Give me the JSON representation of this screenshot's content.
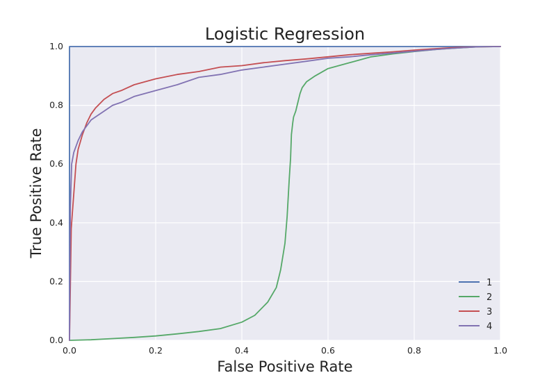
{
  "chart_data": {
    "type": "line",
    "title": "Logistic Regression",
    "xlabel": "False Positive Rate",
    "ylabel": "True Positive Rate",
    "xlim": [
      0.0,
      1.0
    ],
    "ylim": [
      0.0,
      1.0
    ],
    "xticks": [
      "0.0",
      "0.2",
      "0.4",
      "0.6",
      "0.8",
      "1.0"
    ],
    "yticks": [
      "0.0",
      "0.2",
      "0.4",
      "0.6",
      "0.8",
      "1.0"
    ],
    "grid": true,
    "legend_position": "lower-right",
    "background": "#EAEAF2",
    "series": [
      {
        "name": "1",
        "color": "#4C72B0",
        "x": [
          0.0,
          0.0,
          1.0
        ],
        "y": [
          0.0,
          1.0,
          1.0
        ]
      },
      {
        "name": "2",
        "color": "#55A868",
        "x": [
          0.0,
          0.05,
          0.1,
          0.15,
          0.2,
          0.25,
          0.3,
          0.35,
          0.4,
          0.43,
          0.46,
          0.48,
          0.49,
          0.5,
          0.505,
          0.51,
          0.513,
          0.515,
          0.518,
          0.52,
          0.525,
          0.53,
          0.535,
          0.54,
          0.55,
          0.57,
          0.6,
          0.65,
          0.7,
          0.75,
          0.8,
          0.85,
          0.9,
          0.95,
          1.0
        ],
        "y": [
          0.0,
          0.002,
          0.006,
          0.01,
          0.015,
          0.022,
          0.03,
          0.04,
          0.062,
          0.085,
          0.13,
          0.18,
          0.24,
          0.33,
          0.42,
          0.55,
          0.62,
          0.7,
          0.74,
          0.76,
          0.78,
          0.81,
          0.84,
          0.86,
          0.88,
          0.9,
          0.925,
          0.945,
          0.965,
          0.975,
          0.983,
          0.99,
          0.995,
          0.999,
          1.0
        ]
      },
      {
        "name": "3",
        "color": "#C44E52",
        "x": [
          0.0,
          0.002,
          0.004,
          0.006,
          0.01,
          0.015,
          0.02,
          0.03,
          0.04,
          0.05,
          0.06,
          0.08,
          0.1,
          0.12,
          0.15,
          0.2,
          0.25,
          0.3,
          0.35,
          0.4,
          0.45,
          0.5,
          0.55,
          0.6,
          0.65,
          0.7,
          0.75,
          0.8,
          0.85,
          0.9,
          0.95,
          1.0
        ],
        "y": [
          0.0,
          0.18,
          0.38,
          0.42,
          0.5,
          0.6,
          0.65,
          0.7,
          0.74,
          0.77,
          0.79,
          0.82,
          0.84,
          0.85,
          0.87,
          0.89,
          0.905,
          0.915,
          0.93,
          0.935,
          0.945,
          0.952,
          0.958,
          0.965,
          0.972,
          0.977,
          0.982,
          0.988,
          0.993,
          0.997,
          0.999,
          1.0
        ]
      },
      {
        "name": "4",
        "color": "#8172B2",
        "x": [
          0.0,
          0.002,
          0.005,
          0.01,
          0.02,
          0.03,
          0.04,
          0.05,
          0.06,
          0.08,
          0.1,
          0.12,
          0.15,
          0.2,
          0.25,
          0.3,
          0.35,
          0.4,
          0.45,
          0.5,
          0.55,
          0.6,
          0.65,
          0.7,
          0.75,
          0.8,
          0.85,
          0.9,
          0.95,
          1.0
        ],
        "y": [
          0.0,
          0.45,
          0.6,
          0.64,
          0.68,
          0.71,
          0.73,
          0.75,
          0.76,
          0.78,
          0.8,
          0.81,
          0.83,
          0.85,
          0.87,
          0.895,
          0.905,
          0.92,
          0.93,
          0.94,
          0.95,
          0.96,
          0.965,
          0.972,
          0.978,
          0.984,
          0.99,
          0.995,
          0.999,
          1.0
        ]
      }
    ]
  }
}
